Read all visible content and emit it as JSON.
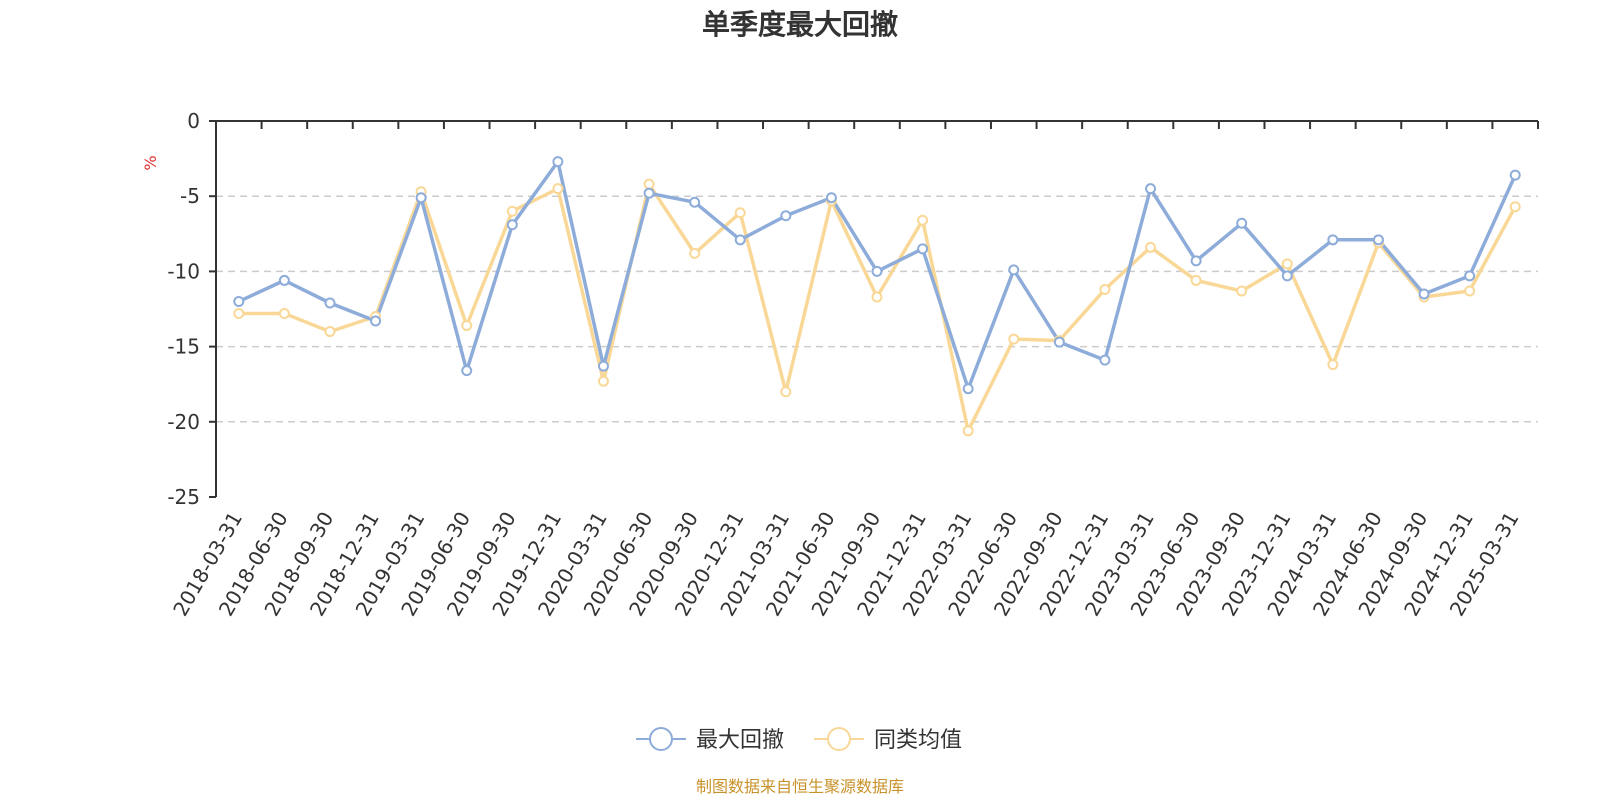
{
  "chart_data": {
    "type": "line",
    "title": "单季度最大回撤",
    "ylabel": "%",
    "ylim": [
      -25,
      0
    ],
    "yticks": [
      0,
      -5,
      -10,
      -15,
      -20,
      -25
    ],
    "ytick_labels": [
      "0",
      "-5",
      "-10",
      "-15",
      "-20",
      "-25"
    ],
    "grid": true,
    "legend_position": "bottom-center",
    "categories": [
      "2018-03-31",
      "2018-06-30",
      "2018-09-30",
      "2018-12-31",
      "2019-03-31",
      "2019-06-30",
      "2019-09-30",
      "2019-12-31",
      "2020-03-31",
      "2020-06-30",
      "2020-09-30",
      "2020-12-31",
      "2021-03-31",
      "2021-06-30",
      "2021-09-30",
      "2021-12-31",
      "2022-03-31",
      "2022-06-30",
      "2022-09-30",
      "2022-12-31",
      "2023-03-31",
      "2023-06-30",
      "2023-09-30",
      "2023-12-31",
      "2024-03-31",
      "2024-06-30",
      "2024-09-30",
      "2024-12-31",
      "2025-03-31"
    ],
    "series": [
      {
        "name": "最大回撤",
        "color": "#8eacd9",
        "values": [
          -12.0,
          -10.6,
          -12.1,
          -13.3,
          -5.1,
          -16.6,
          -6.9,
          -2.7,
          -16.3,
          -4.8,
          -5.4,
          -7.9,
          -6.3,
          -5.1,
          -10.0,
          -8.5,
          -17.8,
          -9.9,
          -14.7,
          -15.9,
          -4.5,
          -9.3,
          -6.8,
          -10.3,
          -7.9,
          -7.9,
          -11.5,
          -10.3,
          -3.6
        ]
      },
      {
        "name": "同类均值",
        "color": "#f9d897",
        "values": [
          -12.8,
          -12.8,
          -14.0,
          -13.0,
          -4.7,
          -13.6,
          -6.0,
          -4.5,
          -17.3,
          -4.2,
          -8.8,
          -6.1,
          -18.0,
          -5.3,
          -11.7,
          -6.6,
          -20.6,
          -14.5,
          -14.6,
          -11.2,
          -8.4,
          -10.6,
          -11.3,
          -9.5,
          -16.2,
          -8.1,
          -11.7,
          -11.3,
          -5.7
        ]
      }
    ],
    "source_note": "制图数据来自恒生聚源数据库"
  }
}
